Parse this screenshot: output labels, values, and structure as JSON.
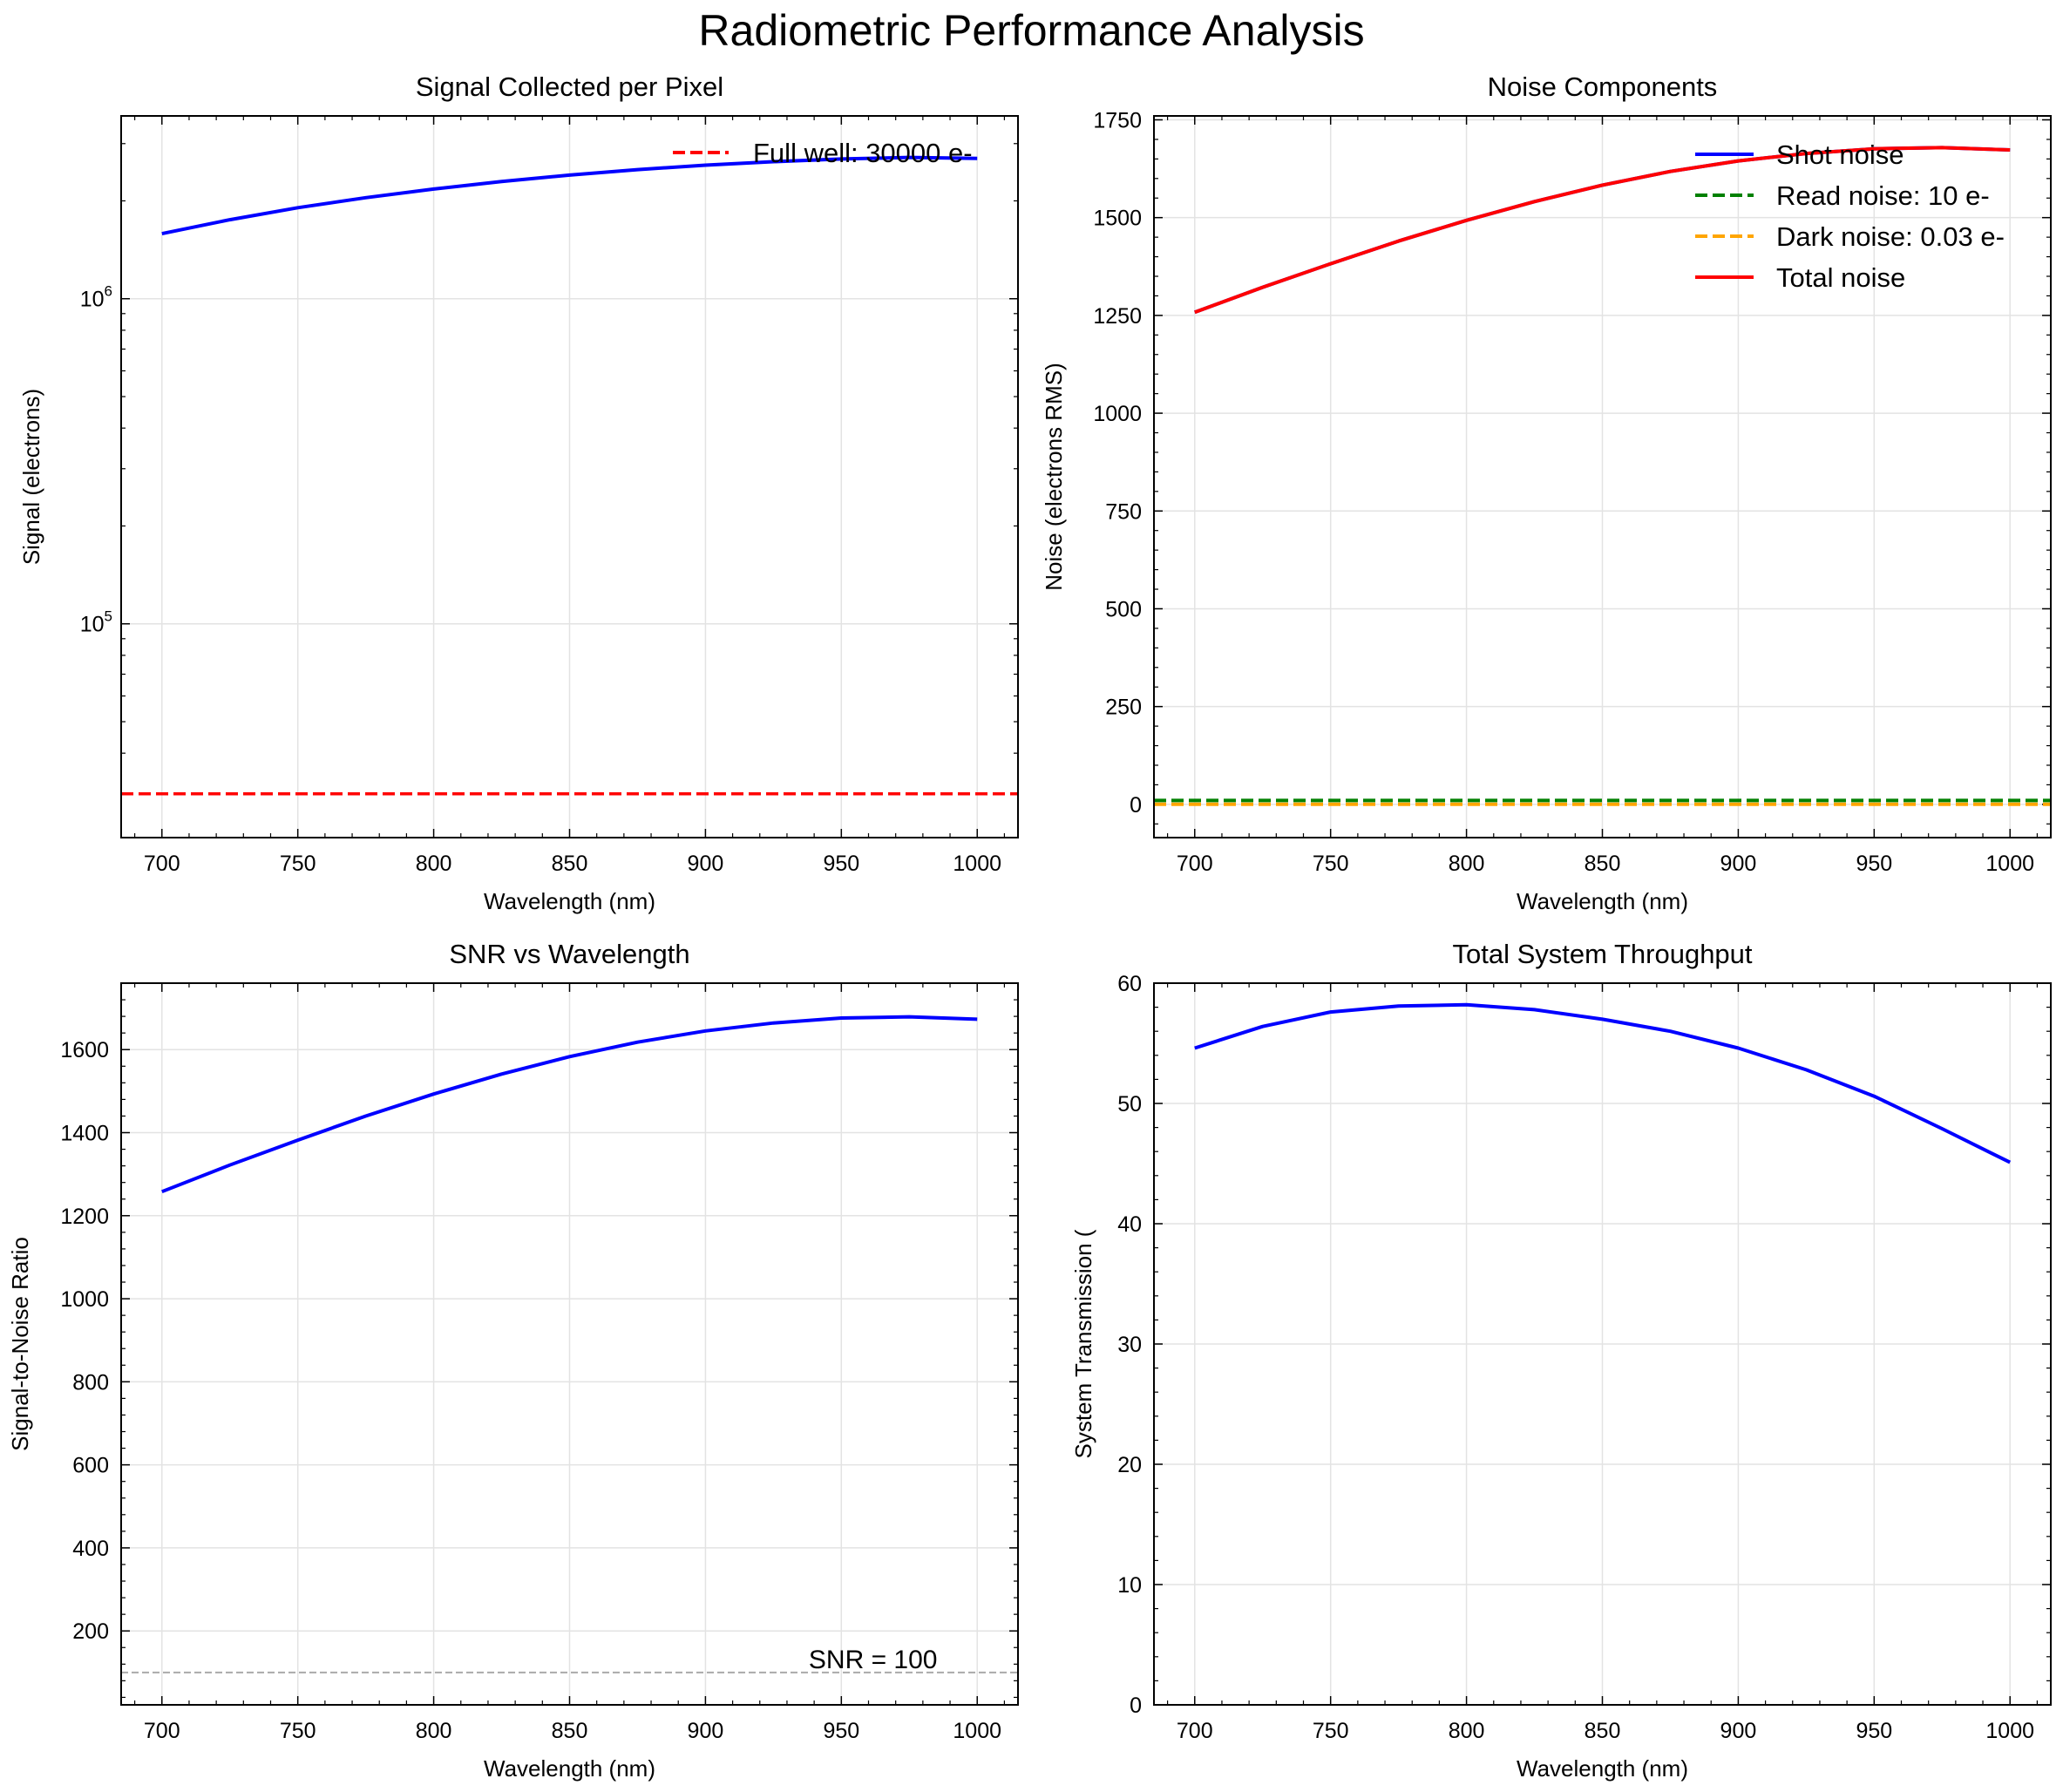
{
  "figure": {
    "title": "Radiometric Performance Analysis"
  },
  "chart_data": [
    {
      "id": "signal",
      "type": "line",
      "title": "Signal Collected per Pixel",
      "xlabel": "Wavelength (nm)",
      "ylabel": "Signal (electrons)",
      "yscale": "log",
      "xlim": [
        685,
        1015
      ],
      "ylim": [
        22000,
        3650000
      ],
      "xticks": [
        700,
        750,
        800,
        850,
        900,
        950,
        1000
      ],
      "yticks": [
        {
          "value": 100000,
          "base": "10",
          "exp": "5"
        },
        {
          "value": 1000000,
          "base": "10",
          "exp": "6"
        }
      ],
      "grid": true,
      "legend": {
        "placement": "top-right"
      },
      "series": [
        {
          "name": "",
          "color": "#0000ff",
          "style": "solid",
          "x": [
            700,
            725,
            750,
            775,
            800,
            825,
            850,
            875,
            900,
            925,
            950,
            975,
            1000
          ],
          "y": [
            1585000,
            1750000,
            1905000,
            2045000,
            2175000,
            2295000,
            2400000,
            2495000,
            2575000,
            2640000,
            2690000,
            2720000,
            2700000
          ]
        }
      ],
      "hlines": [
        {
          "name": "Full well: 30000 e-",
          "value": 30000,
          "color": "#ff0000",
          "style": "dashed"
        }
      ]
    },
    {
      "id": "noise",
      "type": "line",
      "title": "Noise Components",
      "xlabel": "Wavelength (nm)",
      "ylabel": "Noise (electrons RMS)",
      "yscale": "linear",
      "xlim": [
        685,
        1015
      ],
      "ylim": [
        -85,
        1760
      ],
      "xticks": [
        700,
        750,
        800,
        850,
        900,
        950,
        1000
      ],
      "yticks": [
        0,
        250,
        500,
        750,
        1000,
        1250,
        1500,
        1750
      ],
      "grid": true,
      "legend": {
        "placement": "top-right"
      },
      "series": [
        {
          "name": "Shot noise",
          "color": "#0000ff",
          "style": "solid",
          "x": [
            700,
            725,
            750,
            775,
            800,
            825,
            850,
            875,
            900,
            925,
            950,
            975,
            1000
          ],
          "y": [
            1258,
            1322,
            1382,
            1440,
            1493,
            1541,
            1583,
            1618,
            1645,
            1664,
            1676,
            1679,
            1673
          ]
        },
        {
          "name": "Read noise: 10 e-",
          "color": "#008000",
          "style": "dashed",
          "x": [
            685,
            1015
          ],
          "y": [
            10,
            10
          ]
        },
        {
          "name": "Dark noise: 0.03 e-",
          "color": "#ffa500",
          "style": "dashed",
          "x": [
            685,
            1015
          ],
          "y": [
            0.03,
            0.03
          ]
        },
        {
          "name": "Total noise",
          "color": "#ff0000",
          "style": "solid",
          "x": [
            700,
            725,
            750,
            775,
            800,
            825,
            850,
            875,
            900,
            925,
            950,
            975,
            1000
          ],
          "y": [
            1258,
            1322,
            1382,
            1440,
            1493,
            1541,
            1583,
            1618,
            1645,
            1664,
            1676,
            1679,
            1673
          ]
        }
      ]
    },
    {
      "id": "snr",
      "type": "line",
      "title": "SNR vs Wavelength",
      "xlabel": "Wavelength (nm)",
      "ylabel": "Signal-to-Noise Ratio",
      "yscale": "linear",
      "xlim": [
        685,
        1015
      ],
      "ylim": [
        22,
        1760
      ],
      "xticks": [
        700,
        750,
        800,
        850,
        900,
        950,
        1000
      ],
      "yticks": [
        200,
        400,
        600,
        800,
        1000,
        1200,
        1400,
        1600
      ],
      "grid": true,
      "series": [
        {
          "name": "",
          "color": "#0000ff",
          "style": "solid",
          "x": [
            700,
            725,
            750,
            775,
            800,
            825,
            850,
            875,
            900,
            925,
            950,
            975,
            1000
          ],
          "y": [
            1258,
            1322,
            1382,
            1440,
            1493,
            1541,
            1583,
            1618,
            1645,
            1664,
            1676,
            1679,
            1673
          ]
        }
      ],
      "hlines": [
        {
          "name": "",
          "value": 100,
          "color": "#aaaaaa",
          "style": "dashed"
        }
      ],
      "annotations": [
        {
          "text": "SNR = 100",
          "x": 938,
          "y": 110
        }
      ]
    },
    {
      "id": "throughput",
      "type": "line",
      "title": "Total System Throughput",
      "xlabel": "Wavelength (nm)",
      "ylabel": "System Transmission (",
      "yscale": "linear",
      "xlim": [
        685,
        1015
      ],
      "ylim": [
        0,
        60
      ],
      "xticks": [
        700,
        750,
        800,
        850,
        900,
        950,
        1000
      ],
      "yticks": [
        0,
        10,
        20,
        30,
        40,
        50,
        60
      ],
      "grid": true,
      "series": [
        {
          "name": "",
          "color": "#0000ff",
          "style": "solid",
          "x": [
            700,
            725,
            750,
            775,
            800,
            825,
            850,
            875,
            900,
            925,
            950,
            975,
            1000
          ],
          "y": [
            54.6,
            56.4,
            57.6,
            58.1,
            58.2,
            57.8,
            57.0,
            56.0,
            54.6,
            52.8,
            50.6,
            47.9,
            45.1
          ]
        }
      ]
    }
  ]
}
